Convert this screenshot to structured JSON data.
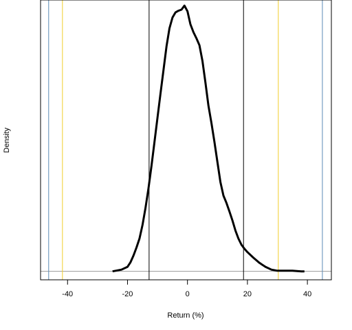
{
  "chart_data": {
    "type": "line",
    "xlabel": "Return (%)",
    "ylabel": "Density",
    "xlim": [
      -49,
      48
    ],
    "ylim": [
      -0.0015,
      0.048
    ],
    "x_ticks": [
      -40,
      -20,
      0,
      20,
      40
    ],
    "x_tick_labels": [
      "-40",
      "-20",
      "0",
      "20",
      "40"
    ],
    "grid": false,
    "series": [
      {
        "color": "#000000",
        "x": [
          -25,
          -22,
          -20,
          -19,
          -18,
          -17,
          -16,
          -15,
          -14,
          -13,
          -12,
          -11,
          -10,
          -9,
          -8,
          -7,
          -6,
          -5,
          -4,
          -3,
          -2,
          -1,
          0,
          1,
          2,
          3,
          4,
          5,
          6,
          7,
          8,
          9,
          10,
          11,
          12,
          13,
          14,
          15,
          16,
          17,
          18,
          19,
          20,
          22,
          24,
          26,
          28,
          30,
          32,
          35,
          38,
          39
        ],
        "y": [
          0.0,
          0.0003,
          0.0008,
          0.0016,
          0.0028,
          0.0042,
          0.0058,
          0.0082,
          0.0112,
          0.0147,
          0.0187,
          0.0229,
          0.0272,
          0.0314,
          0.0356,
          0.0398,
          0.043,
          0.0449,
          0.0458,
          0.0461,
          0.0463,
          0.047,
          0.046,
          0.0437,
          0.0423,
          0.0412,
          0.04,
          0.0372,
          0.0334,
          0.0293,
          0.0262,
          0.0229,
          0.0193,
          0.0158,
          0.0134,
          0.0121,
          0.0106,
          0.009,
          0.0072,
          0.0058,
          0.0047,
          0.004,
          0.0034,
          0.0024,
          0.0015,
          0.0008,
          0.0003,
          0.0001,
          0.0001,
          0.0001,
          0.0,
          0.0
        ]
      }
    ],
    "hline": {
      "y": 0,
      "color": "#999999"
    },
    "vlines": [
      {
        "x": -46.3,
        "color": "#5b8ab5"
      },
      {
        "x": -41.7,
        "color": "#f2cd2a"
      },
      {
        "x": -12.8,
        "color": "#000000"
      },
      {
        "x": 18.7,
        "color": "#000000"
      },
      {
        "x": 30.3,
        "color": "#f2cd2a"
      },
      {
        "x": 45.0,
        "color": "#5b8ab5"
      }
    ]
  }
}
